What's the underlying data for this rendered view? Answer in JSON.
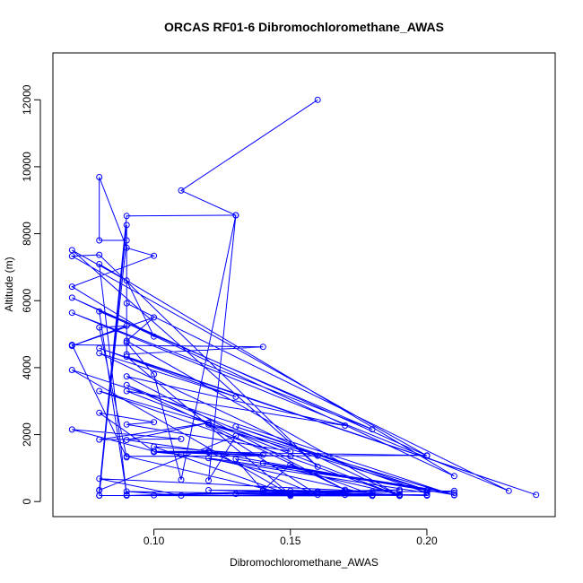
{
  "chart_data": {
    "type": "line",
    "title": "ORCAS RF01-6 Dibromochloromethane_AWAS",
    "xlabel": "Dibromochloromethane_AWAS",
    "ylabel": "Altitude (m)",
    "xlim": [
      0.063,
      0.247
    ],
    "ylim": [
      -450,
      13400
    ],
    "x_ticks": [
      0.1,
      0.15,
      0.2
    ],
    "x_tick_labels": [
      "0.10",
      "0.15",
      "0.20"
    ],
    "y_ticks": [
      0,
      2000,
      4000,
      6000,
      8000,
      10000,
      12000
    ],
    "y_tick_labels": [
      "0",
      "2000",
      "4000",
      "6000",
      "8000",
      "10000",
      "12000"
    ],
    "grid": false,
    "marker": "open-circle",
    "series_color": "#0000ff",
    "series": [
      {
        "points": [
          [
            0.16,
            12000
          ],
          [
            0.11,
            9290
          ],
          [
            0.13,
            8550
          ],
          [
            0.12,
            630
          ],
          [
            0.13,
            1960
          ],
          [
            0.08,
            340
          ],
          [
            0.09,
            8530
          ],
          [
            0.13,
            8550
          ],
          [
            0.11,
            650
          ],
          [
            0.1,
            3800
          ],
          [
            0.09,
            4750
          ],
          [
            0.09,
            8260
          ],
          [
            0.08,
            180
          ],
          [
            0.08,
            340
          ],
          [
            0.09,
            7800
          ],
          [
            0.08,
            7800
          ],
          [
            0.08,
            9690
          ],
          [
            0.09,
            7580
          ],
          [
            0.1,
            7340
          ],
          [
            0.07,
            6420
          ],
          [
            0.1,
            4930
          ],
          [
            0.09,
            6600
          ],
          [
            0.07,
            7510
          ],
          [
            0.16,
            1040
          ],
          [
            0.08,
            7370
          ],
          [
            0.07,
            7330
          ],
          [
            0.2,
            1370
          ],
          [
            0.07,
            6090
          ],
          [
            0.21,
            760
          ],
          [
            0.08,
            7090
          ],
          [
            0.09,
            200
          ],
          [
            0.08,
            5680
          ],
          [
            0.18,
            2160
          ],
          [
            0.07,
            5640
          ],
          [
            0.23,
            320
          ],
          [
            0.09,
            5920
          ],
          [
            0.09,
            4400
          ],
          [
            0.14,
            4620
          ],
          [
            0.07,
            4680
          ],
          [
            0.09,
            1320
          ],
          [
            0.08,
            5200
          ],
          [
            0.09,
            5250
          ],
          [
            0.07,
            4650
          ],
          [
            0.1,
            5500
          ],
          [
            0.09,
            4800
          ],
          [
            0.19,
            180
          ],
          [
            0.08,
            4430
          ],
          [
            0.13,
            3130
          ],
          [
            0.08,
            4580
          ],
          [
            0.24,
            200
          ],
          [
            0.09,
            4330
          ],
          [
            0.15,
            210
          ],
          [
            0.07,
            3930
          ],
          [
            0.21,
            190
          ],
          [
            0.08,
            3300
          ],
          [
            0.19,
            170
          ],
          [
            0.09,
            3300
          ],
          [
            0.17,
            2270
          ],
          [
            0.09,
            3740
          ],
          [
            0.17,
            350
          ],
          [
            0.09,
            3480
          ],
          [
            0.15,
            1500
          ],
          [
            0.09,
            2300
          ],
          [
            0.1,
            2370
          ],
          [
            0.08,
            2650
          ],
          [
            0.1,
            1500
          ],
          [
            0.07,
            2150
          ],
          [
            0.11,
            1870
          ],
          [
            0.08,
            1850
          ],
          [
            0.12,
            2350
          ],
          [
            0.09,
            1840
          ],
          [
            0.12,
            1500
          ],
          [
            0.1,
            1500
          ],
          [
            0.14,
            1400
          ],
          [
            0.1,
            1640
          ],
          [
            0.15,
            200
          ],
          [
            0.09,
            1350
          ],
          [
            0.16,
            1370
          ],
          [
            0.2,
            1380
          ],
          [
            0.1,
            1500
          ],
          [
            0.15,
            1350
          ],
          [
            0.1,
            1480
          ],
          [
            0.11,
            1400
          ],
          [
            0.2,
            260
          ],
          [
            0.13,
            2240
          ],
          [
            0.2,
            340
          ],
          [
            0.12,
            2300
          ],
          [
            0.16,
            200
          ],
          [
            0.12,
            1480
          ],
          [
            0.21,
            200
          ],
          [
            0.13,
            1270
          ],
          [
            0.14,
            330
          ],
          [
            0.15,
            1100
          ],
          [
            0.18,
            200
          ],
          [
            0.12,
            1300
          ],
          [
            0.21,
            260
          ],
          [
            0.14,
            1150
          ],
          [
            0.19,
            210
          ],
          [
            0.12,
            340
          ],
          [
            0.18,
            300
          ],
          [
            0.08,
            680
          ],
          [
            0.11,
            180
          ],
          [
            0.09,
            300
          ],
          [
            0.17,
            200
          ],
          [
            0.09,
            180
          ],
          [
            0.15,
            320
          ],
          [
            0.1,
            190
          ],
          [
            0.17,
            310
          ],
          [
            0.14,
            350
          ],
          [
            0.19,
            180
          ],
          [
            0.13,
            230
          ],
          [
            0.18,
            170
          ],
          [
            0.08,
            180
          ],
          [
            0.2,
            200
          ],
          [
            0.15,
            230
          ],
          [
            0.16,
            280
          ],
          [
            0.2,
            180
          ],
          [
            0.14,
            260
          ],
          [
            0.19,
            350
          ],
          [
            0.15,
            170
          ],
          [
            0.17,
            200
          ],
          [
            0.16,
            300
          ],
          [
            0.18,
            260
          ],
          [
            0.19,
            300
          ],
          [
            0.2,
            300
          ],
          [
            0.21,
            320
          ]
        ]
      }
    ]
  }
}
